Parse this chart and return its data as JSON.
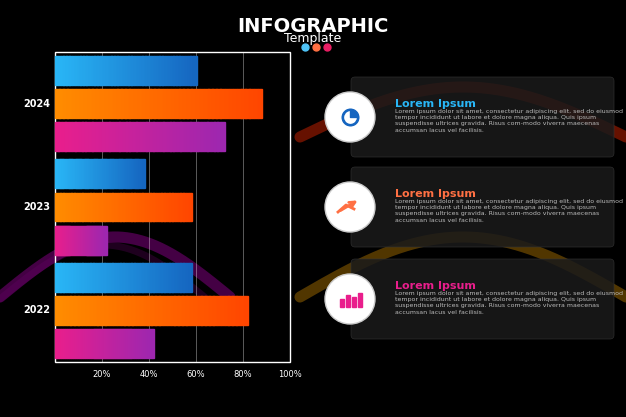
{
  "title_main": "INFOGRAPHIC",
  "title_sub": "Template",
  "dots": [
    "#4fc3f7",
    "#ff7043",
    "#e91e63"
  ],
  "bg_color": "#000000",
  "years": [
    "2024",
    "2023",
    "2022"
  ],
  "bars": {
    "2024": [
      60,
      88,
      72
    ],
    "2023": [
      38,
      58,
      22
    ],
    "2022": [
      58,
      82,
      42
    ]
  },
  "bar_colors": [
    [
      "#29b6f6",
      "#1565c0"
    ],
    [
      "#ff8c00",
      "#ff4500"
    ],
    [
      "#e91e8c",
      "#9c27b0"
    ]
  ],
  "x_ticks": [
    20,
    40,
    60,
    80,
    100
  ],
  "chart_box_color": "#ffffff",
  "wave_colors_left": [
    "#880e4f",
    "#4a148c"
  ],
  "wave_colors_right": [
    "#b71c1c",
    "#f57f17"
  ],
  "info_cards": [
    {
      "title": "Lorem Ipsum",
      "title_color": "#29b6f6",
      "icon_color": "#1565c0",
      "body": "Lorem ipsum dolor sit amet, consectetur adipiscing elit, sed do eiusmod tempor incididunt ut labore et dolore magna aliqua. Quis ipsum suspendisse ultrices gravida. Risus com-modo viverra maecenas accumsan lacus vel facilisis."
    },
    {
      "title": "Lorem Ipsum",
      "title_color": "#ff7043",
      "icon_color": "#ff7043",
      "body": "Lorem ipsum dolor sit amet, consectetur adipiscing elit, sed do eiusmod tempor incididunt ut labore et dolore magna aliqua. Quis ipsum suspendisse ultrices gravida. Risus com-modo viverra maecenas accumsan lacus vel facilisis."
    },
    {
      "title": "Lorem Ipsum",
      "title_color": "#e91e8c",
      "icon_color": "#e91e8c",
      "body": "Lorem ipsum dolor sit amet, consectetur adipiscing elit, sed do eiusmod tempor incididunt ut labore et dolore magna aliqua. Quis ipsum suspendisse ultrices gravida. Risus com-modo viverra maecenas accumsan lacus vel facilisis."
    }
  ]
}
